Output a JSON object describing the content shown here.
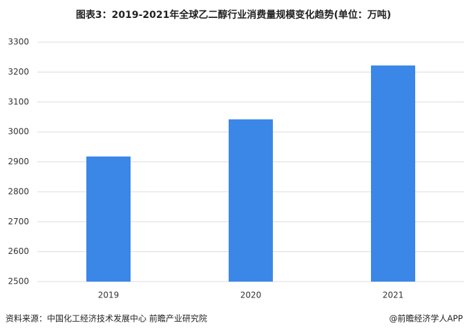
{
  "chart_data": {
    "type": "bar",
    "title": "图表3：2019-2021年全球乙二醇行业消费量规模变化趋势(单位：万吨)",
    "categories": [
      "2019",
      "2020",
      "2021"
    ],
    "values": [
      2918,
      3042,
      3222
    ],
    "color": "#3a87e8",
    "ylim": [
      2500,
      3300
    ],
    "yticks": [
      2500,
      2600,
      2700,
      2800,
      2900,
      3000,
      3100,
      3200,
      3300
    ],
    "grid": true,
    "source": "资料来源：中国化工经济技术发展中心 前瞻产业研究院",
    "credit": "@前瞻经济学人APP"
  }
}
